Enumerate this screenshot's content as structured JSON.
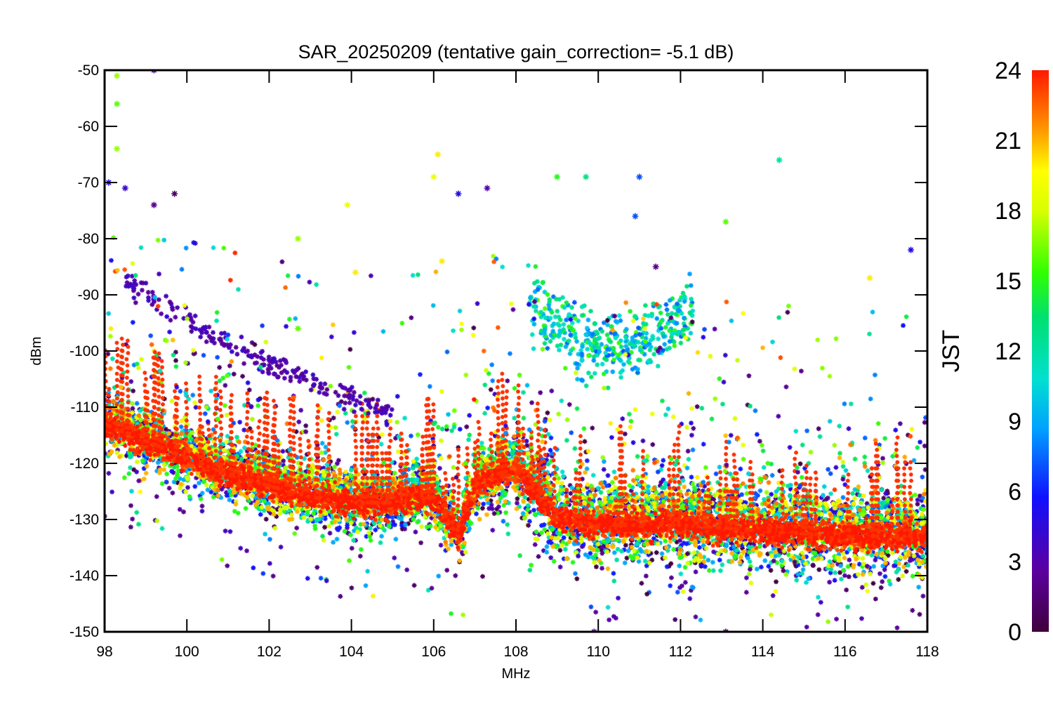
{
  "chart_data": {
    "type": "scatter",
    "title": "SAR_20250209 (tentative gain_correction= -5.1 dB)",
    "xlabel": "MHz",
    "ylabel": "dBm",
    "xlim": [
      98,
      118
    ],
    "ylim": [
      -150,
      -50
    ],
    "xticks": [
      98,
      100,
      102,
      104,
      106,
      108,
      110,
      112,
      114,
      116,
      118
    ],
    "yticks": [
      -50,
      -60,
      -70,
      -80,
      -90,
      -100,
      -110,
      -120,
      -130,
      -140,
      -150
    ],
    "colorbar": {
      "label": "JST",
      "range": [
        0,
        24
      ],
      "ticks": [
        24,
        21,
        18,
        15,
        12,
        9,
        6,
        3,
        0
      ],
      "colormap": "rainbow (purple → blue → cyan → green → yellow → orange → red)"
    },
    "grid": false,
    "marker": "small star",
    "description_of_data": "Dense spectrum scatter of received power vs frequency, colored by hour (JST). Noise floor decreases from about -113 dBm at 98 MHz to about -127 dBm near 106 MHz, dips to about -133 dBm near 106.6 MHz, then lies around -128 to -135 dBm from 108 to 118 MHz with many vertical spikes; scattered peaks reach -50 dBm.",
    "floor_profile": {
      "x": [
        98,
        99,
        100,
        101,
        102,
        103,
        104,
        105,
        106,
        106.6,
        107,
        107.5,
        108,
        109,
        110,
        112,
        114,
        116,
        118
      ],
      "y": [
        -113,
        -116,
        -119,
        -122,
        -124,
        -126,
        -127,
        -127,
        -126,
        -133,
        -124,
        -122,
        -121,
        -130,
        -131,
        -131,
        -132,
        -133,
        -133
      ]
    },
    "highlight_points": [
      {
        "x": 98.3,
        "y": -51,
        "hour": 17
      },
      {
        "x": 98.3,
        "y": -56,
        "hour": 16
      },
      {
        "x": 98.3,
        "y": -64,
        "hour": 17
      },
      {
        "x": 99.2,
        "y": -50,
        "hour": 3
      },
      {
        "x": 98.1,
        "y": -70,
        "hour": 5
      },
      {
        "x": 98.5,
        "y": -71,
        "hour": 4
      },
      {
        "x": 99.2,
        "y": -74,
        "hour": 2
      },
      {
        "x": 99.7,
        "y": -72,
        "hour": 1
      },
      {
        "x": 102.7,
        "y": -80,
        "hour": 17
      },
      {
        "x": 102.7,
        "y": -96,
        "hour": 16
      },
      {
        "x": 103.9,
        "y": -74,
        "hour": 19
      },
      {
        "x": 104.1,
        "y": -86,
        "hour": 20
      },
      {
        "x": 106.1,
        "y": -65,
        "hour": 20
      },
      {
        "x": 106.0,
        "y": -69,
        "hour": 19
      },
      {
        "x": 106.2,
        "y": -84,
        "hour": 20
      },
      {
        "x": 106.6,
        "y": -72,
        "hour": 5
      },
      {
        "x": 107.3,
        "y": -71,
        "hour": 3
      },
      {
        "x": 109.0,
        "y": -69,
        "hour": 15
      },
      {
        "x": 109.7,
        "y": -69,
        "hour": 13
      },
      {
        "x": 111.0,
        "y": -69,
        "hour": 7
      },
      {
        "x": 110.9,
        "y": -76,
        "hour": 7
      },
      {
        "x": 111.4,
        "y": -85,
        "hour": 2
      },
      {
        "x": 113.1,
        "y": -77,
        "hour": 16
      },
      {
        "x": 114.4,
        "y": -66,
        "hour": 12
      },
      {
        "x": 116.6,
        "y": -87,
        "hour": 20
      },
      {
        "x": 117.6,
        "y": -82,
        "hour": 5
      },
      {
        "x": 113.1,
        "y": -150,
        "hour": 1
      },
      {
        "x": 109.9,
        "y": -150,
        "hour": 2
      }
    ]
  }
}
